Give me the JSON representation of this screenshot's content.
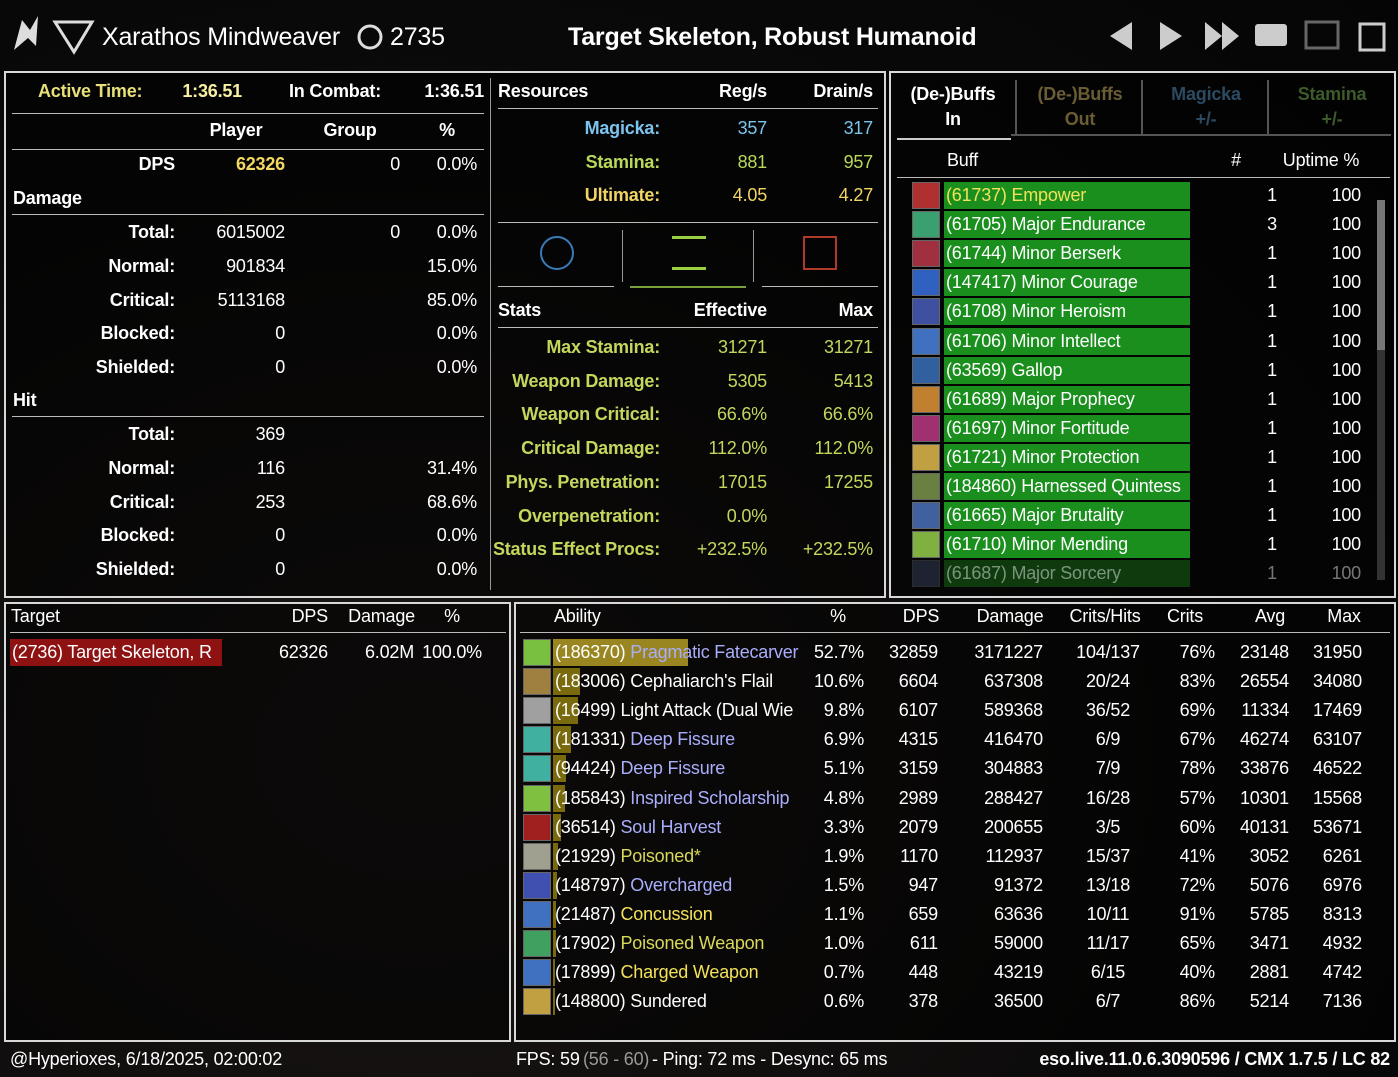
{
  "header": {
    "character": "Xarathos Mindweaver",
    "champion_points": "2735",
    "target": "Target Skeleton, Robust Humanoid"
  },
  "overview": {
    "active_time_label": "Active Time:",
    "active_time": "1:36.51",
    "in_combat_label": "In Combat:",
    "in_combat": "1:36.51",
    "columns": [
      "Player",
      "Group",
      "%"
    ],
    "dps": {
      "label": "DPS",
      "player": "62326",
      "group": "0",
      "pct": "0.0%"
    },
    "damage": {
      "title": "Damage",
      "rows": [
        {
          "label": "Total:",
          "player": "6015002",
          "group": "0",
          "pct": "0.0%"
        },
        {
          "label": "Normal:",
          "player": "901834",
          "pct": "15.0%"
        },
        {
          "label": "Critical:",
          "player": "5113168",
          "pct": "85.0%"
        },
        {
          "label": "Blocked:",
          "player": "0",
          "pct": "0.0%"
        },
        {
          "label": "Shielded:",
          "player": "0",
          "pct": "0.0%"
        }
      ]
    },
    "hit": {
      "title": "Hit",
      "rows": [
        {
          "label": "Total:",
          "player": "369"
        },
        {
          "label": "Normal:",
          "player": "116",
          "pct": "31.4%"
        },
        {
          "label": "Critical:",
          "player": "253",
          "pct": "68.6%"
        },
        {
          "label": "Blocked:",
          "player": "0",
          "pct": "0.0%"
        },
        {
          "label": "Shielded:",
          "player": "0",
          "pct": "0.0%"
        }
      ]
    }
  },
  "resources": {
    "columns": [
      "Resources",
      "Reg/s",
      "Drain/s"
    ],
    "rows": [
      {
        "label": "Magicka:",
        "reg": "357",
        "drain": "317",
        "color": "#7cc4ee"
      },
      {
        "label": "Stamina:",
        "reg": "881",
        "drain": "957",
        "color": "#b8d85a"
      },
      {
        "label": "Ultimate:",
        "reg": "4.05",
        "drain": "4.27",
        "color": "#f0d464"
      }
    ]
  },
  "stats": {
    "columns": [
      "Stats",
      "Effective",
      "Max"
    ],
    "color": "#c4d65c",
    "rows": [
      {
        "label": "Max Stamina:",
        "effective": "31271",
        "max": "31271"
      },
      {
        "label": "Weapon Damage:",
        "effective": "5305",
        "max": "5413"
      },
      {
        "label": "Weapon Critical:",
        "effective": "66.6%",
        "max": "66.6%"
      },
      {
        "label": "Critical Damage:",
        "effective": "112.0%",
        "max": "112.0%"
      },
      {
        "label": "Phys. Penetration:",
        "effective": "17015",
        "max": "17255"
      },
      {
        "label": "Overpenetration:",
        "effective": "0.0%"
      },
      {
        "label": "Status Effect Procs:",
        "effective": "+232.5%",
        "max": "+232.5%"
      }
    ]
  },
  "buffs": {
    "tabs": [
      [
        "(De-)Buffs",
        "In"
      ],
      [
        "(De-)Buffs",
        "Out"
      ],
      [
        "Magicka",
        "+/-"
      ],
      [
        "Stamina",
        "+/-"
      ]
    ],
    "columns": [
      "Buff",
      "#",
      "Uptime %"
    ],
    "rows": [
      {
        "name": "(61737) Empower",
        "count": "1",
        "uptime": "100",
        "color": "#f2e25a"
      },
      {
        "name": "(61705) Major Endurance",
        "count": "3",
        "uptime": "100",
        "color": "#ffffff"
      },
      {
        "name": "(61744) Minor Berserk",
        "count": "1",
        "uptime": "100",
        "color": "#ffffff"
      },
      {
        "name": "(147417) Minor Courage",
        "count": "1",
        "uptime": "100",
        "color": "#ffffff"
      },
      {
        "name": "(61708) Minor Heroism",
        "count": "1",
        "uptime": "100",
        "color": "#ffffff"
      },
      {
        "name": "(61706) Minor Intellect",
        "count": "1",
        "uptime": "100",
        "color": "#ffffff"
      },
      {
        "name": "(63569) Gallop",
        "count": "1",
        "uptime": "100",
        "color": "#ffffff"
      },
      {
        "name": "(61689) Major Prophecy",
        "count": "1",
        "uptime": "100",
        "color": "#ffffff"
      },
      {
        "name": "(61697) Minor Fortitude",
        "count": "1",
        "uptime": "100",
        "color": "#ffffff"
      },
      {
        "name": "(61721) Minor Protection",
        "count": "1",
        "uptime": "100",
        "color": "#ffffff"
      },
      {
        "name": "(184860) Harnessed Quintess",
        "count": "1",
        "uptime": "100",
        "color": "#ffffff"
      },
      {
        "name": "(61665) Major Brutality",
        "count": "1",
        "uptime": "100",
        "color": "#ffffff"
      },
      {
        "name": "(61710) Minor Mending",
        "count": "1",
        "uptime": "100",
        "color": "#ffffff"
      },
      {
        "name": "(61687) Major Sorcery",
        "count": "1",
        "uptime": "100",
        "color": "#ffffff"
      }
    ]
  },
  "targets": {
    "columns": [
      "Target",
      "DPS",
      "Damage",
      "%"
    ],
    "rows": [
      {
        "name": "(2736) Target Skeleton, R",
        "dps": "62326",
        "damage": "6.02M",
        "pct": "100.0%"
      }
    ]
  },
  "abilities": {
    "columns": [
      "Ability",
      "%",
      "DPS",
      "Damage",
      "Crits/Hits",
      "Crits",
      "Avg",
      "Max"
    ],
    "rows": [
      {
        "id": "(186370)",
        "name": "Pragmatic Fatecarver",
        "color": "#a9aefc",
        "pct": "52.7%",
        "dps": "32859",
        "damage": "3171227",
        "crits_hits": "104/137",
        "crits": "76%",
        "avg": "23148",
        "max": "31950"
      },
      {
        "id": "(183006)",
        "name": "Cephaliarch's Flail",
        "color": "#ffffff",
        "pct": "10.6%",
        "dps": "6604",
        "damage": "637308",
        "crits_hits": "20/24",
        "crits": "83%",
        "avg": "26554",
        "max": "34080"
      },
      {
        "id": "(16499)",
        "name": "Light Attack (Dual Wie",
        "color": "#ffffff",
        "pct": "9.8%",
        "dps": "6107",
        "damage": "589368",
        "crits_hits": "36/52",
        "crits": "69%",
        "avg": "11334",
        "max": "17469"
      },
      {
        "id": "(181331)",
        "name": "Deep Fissure",
        "color": "#a9aefc",
        "pct": "6.9%",
        "dps": "4315",
        "damage": "416470",
        "crits_hits": "6/9",
        "crits": "67%",
        "avg": "46274",
        "max": "63107"
      },
      {
        "id": "(94424)",
        "name": "Deep Fissure",
        "color": "#a9aefc",
        "pct": "5.1%",
        "dps": "3159",
        "damage": "304883",
        "crits_hits": "7/9",
        "crits": "78%",
        "avg": "33876",
        "max": "46522"
      },
      {
        "id": "(185843)",
        "name": "Inspired Scholarship",
        "color": "#a9aefc",
        "pct": "4.8%",
        "dps": "2989",
        "damage": "288427",
        "crits_hits": "16/28",
        "crits": "57%",
        "avg": "10301",
        "max": "15568"
      },
      {
        "id": "(36514)",
        "name": "Soul Harvest",
        "color": "#a9aefc",
        "pct": "3.3%",
        "dps": "2079",
        "damage": "200655",
        "crits_hits": "3/5",
        "crits": "60%",
        "avg": "40131",
        "max": "53671"
      },
      {
        "id": "(21929)",
        "name": "Poisoned*",
        "color": "#d8d85a",
        "pct": "1.9%",
        "dps": "1170",
        "damage": "112937",
        "crits_hits": "15/37",
        "crits": "41%",
        "avg": "3052",
        "max": "6261"
      },
      {
        "id": "(148797)",
        "name": "Overcharged",
        "color": "#a9aefc",
        "pct": "1.5%",
        "dps": "947",
        "damage": "91372",
        "crits_hits": "13/18",
        "crits": "72%",
        "avg": "5076",
        "max": "6976"
      },
      {
        "id": "(21487)",
        "name": "Concussion",
        "color": "#f2e25a",
        "pct": "1.1%",
        "dps": "659",
        "damage": "63636",
        "crits_hits": "10/11",
        "crits": "91%",
        "avg": "5785",
        "max": "8313"
      },
      {
        "id": "(17902)",
        "name": "Poisoned Weapon",
        "color": "#d8d85a",
        "pct": "1.0%",
        "dps": "611",
        "damage": "59000",
        "crits_hits": "11/17",
        "crits": "65%",
        "avg": "3471",
        "max": "4932"
      },
      {
        "id": "(17899)",
        "name": "Charged Weapon",
        "color": "#f2e25a",
        "pct": "0.7%",
        "dps": "448",
        "damage": "43219",
        "crits_hits": "6/15",
        "crits": "40%",
        "avg": "2881",
        "max": "4742"
      },
      {
        "id": "(148800)",
        "name": "Sundered",
        "color": "#ffffff",
        "pct": "0.6%",
        "dps": "378",
        "damage": "36500",
        "crits_hits": "6/7",
        "crits": "86%",
        "avg": "5214",
        "max": "7136"
      }
    ]
  },
  "footer": {
    "account": "@Hyperioxes, 6/18/2025, 02:00:02",
    "fps": "FPS: 59",
    "fps_range": "(56 - 60)",
    "network": "- Ping: 72 ms - Desync: 65 ms",
    "version": "eso.live.11.0.6.3090596 / CMX 1.7.5 / LC 82"
  }
}
